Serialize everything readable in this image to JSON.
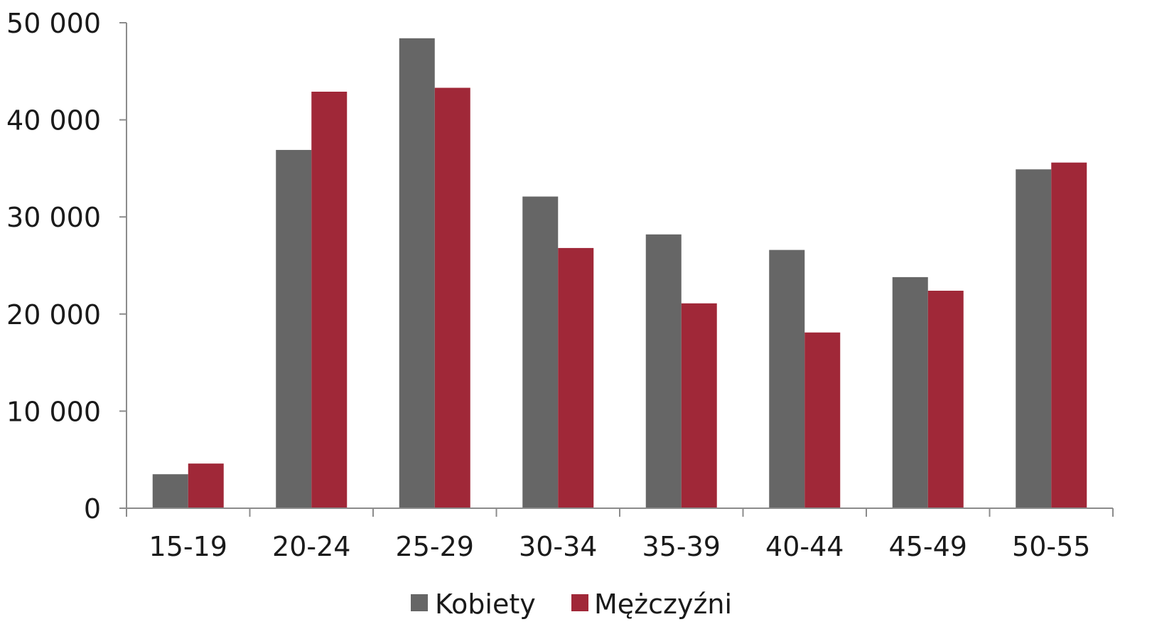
{
  "chart_data": {
    "type": "bar",
    "categories": [
      "15-19",
      "20-24",
      "25-29",
      "30-34",
      "35-39",
      "40-44",
      "45-49",
      "50-55"
    ],
    "series": [
      {
        "name": "Kobiety",
        "color": "#666666",
        "values": [
          3500,
          36900,
          48400,
          32100,
          28200,
          26600,
          23800,
          34900
        ]
      },
      {
        "name": "Mężczyźni",
        "color": "#a02838",
        "values": [
          4600,
          42900,
          43300,
          26800,
          21100,
          18100,
          22400,
          35600
        ]
      }
    ],
    "y_ticks": [
      "0",
      "10 000",
      "20 000",
      "30 000",
      "40 000",
      "50 000"
    ],
    "y_tick_values": [
      0,
      10000,
      20000,
      30000,
      40000,
      50000
    ],
    "ylim": [
      0,
      50000
    ],
    "title": "",
    "xlabel": "",
    "ylabel": "",
    "grid": false,
    "legend_position": "bottom-center"
  }
}
